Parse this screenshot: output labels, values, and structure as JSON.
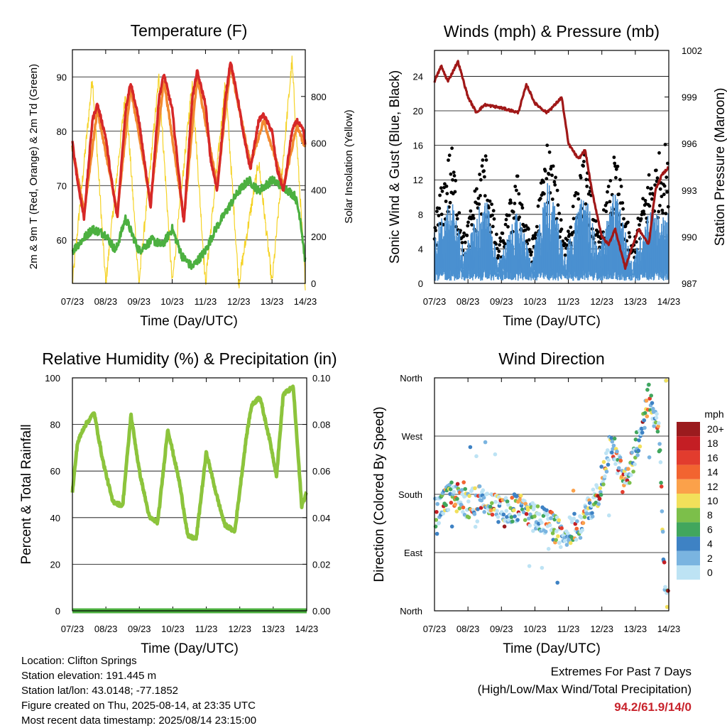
{
  "chart_data": [
    {
      "type": "line",
      "title": "Temperature (F)",
      "xlabel": "Time (Day/UTC)",
      "ylabel": "2m & 9m T (Red, Orange) & 2m Td (Green)",
      "ylabel_right": "Solar Insolation (Yellow)",
      "x_ticks": [
        "07/23",
        "08/23",
        "09/23",
        "10/23",
        "11/23",
        "12/23",
        "13/23",
        "14/23"
      ],
      "ylim": [
        52,
        95
      ],
      "y_ticks": [
        60,
        70,
        80,
        90
      ],
      "y2lim": [
        0,
        1000
      ],
      "y2_ticks": [
        0,
        200,
        400,
        600,
        800
      ],
      "grid": true,
      "series": [
        {
          "color": "#d62828",
          "x": [
            0,
            0.15,
            0.35,
            0.6,
            0.75,
            1.0,
            1.15,
            1.35,
            1.6,
            1.75,
            2.0,
            2.15,
            2.35,
            2.6,
            2.75,
            3.0,
            3.15,
            3.35,
            3.6,
            3.75,
            4.0,
            4.15,
            4.35,
            4.6,
            4.75,
            5.0,
            5.15,
            5.35,
            5.6,
            5.75,
            6.0,
            6.15,
            6.35,
            6.6,
            6.75,
            6.95,
            7.0
          ],
          "values": [
            78,
            71,
            64,
            82,
            85,
            79,
            72,
            64,
            84,
            89,
            82,
            75,
            66,
            86,
            90.5,
            84,
            75,
            63,
            86,
            91,
            85,
            75,
            69,
            86,
            93,
            85,
            79,
            73,
            82,
            83,
            80,
            73,
            69,
            80,
            82,
            80,
            77
          ]
        },
        {
          "color": "#f28a30",
          "x": [
            0,
            0.35,
            0.75,
            1.35,
            1.75,
            2.35,
            2.75,
            3.35,
            3.75,
            4.35,
            4.75,
            5.35,
            5.75,
            6.35,
            6.75,
            7.0
          ],
          "values": [
            77,
            65,
            84,
            65,
            88,
            67,
            89.5,
            64,
            90,
            70,
            92,
            74,
            82,
            70,
            81,
            77
          ]
        },
        {
          "color": "#4cb040",
          "x": [
            0,
            0.3,
            0.6,
            1.0,
            1.3,
            1.6,
            2.0,
            2.4,
            2.7,
            3.0,
            3.3,
            3.6,
            4.0,
            4.3,
            4.6,
            5.0,
            5.3,
            5.6,
            6.0,
            6.3,
            6.7,
            6.85,
            7.0
          ],
          "values": [
            58,
            60,
            62,
            61,
            58,
            64,
            58,
            60,
            59,
            62,
            57,
            55,
            58,
            62,
            65,
            69,
            71,
            69,
            71,
            70,
            68,
            64,
            56
          ]
        },
        {
          "color": "#f5d327",
          "x": [
            0,
            0.6,
            1.0,
            1.6,
            2.0,
            2.6,
            3.0,
            3.6,
            4.0,
            4.6,
            5.0,
            5.6,
            6.0,
            6.6,
            7.0
          ],
          "values_right": [
            0,
            880,
            0,
            820,
            0,
            880,
            0,
            860,
            0,
            860,
            0,
            520,
            0,
            950,
            0
          ]
        }
      ]
    },
    {
      "type": "scatter",
      "title": "Winds (mph) & Pressure (mb)",
      "xlabel": "Time (Day/UTC)",
      "ylabel": "Sonic Wind & Gust (Blue, Black)",
      "ylabel_right": "Station Pressure (Maroon)",
      "x_ticks": [
        "07/23",
        "08/23",
        "09/23",
        "10/23",
        "11/23",
        "12/23",
        "13/23",
        "14/23"
      ],
      "ylim": [
        0,
        27
      ],
      "y_ticks": [
        0,
        4,
        8,
        12,
        16,
        20,
        24
      ],
      "y2lim": [
        987,
        1002
      ],
      "y2_ticks": [
        987,
        990,
        993,
        996,
        999,
        1002
      ],
      "grid": true,
      "series": [
        {
          "color": "#4a90d0",
          "x": [
            0,
            0.5,
            0.9,
            1.5,
            1.9,
            2.5,
            2.9,
            3.4,
            3.9,
            4.5,
            4.9,
            5.4,
            5.9,
            6.4,
            6.9,
            7.0
          ],
          "values": [
            5,
            8,
            3,
            9,
            2,
            7,
            2,
            10,
            3,
            9,
            3,
            9,
            2,
            7,
            6,
            7
          ]
        },
        {
          "color": "#000000",
          "x": [
            0,
            0.5,
            0.9,
            1.5,
            1.9,
            2.5,
            2.9,
            3.4,
            3.9,
            4.5,
            4.9,
            5.4,
            5.9,
            6.4,
            6.9,
            7.0
          ],
          "values": [
            7,
            15,
            5,
            15,
            4,
            12,
            4,
            16,
            5,
            14,
            5,
            14,
            4,
            12,
            15,
            12
          ]
        },
        {
          "color": "#a01818",
          "x": [
            0,
            0.2,
            0.4,
            0.7,
            1.0,
            1.25,
            1.5,
            2.0,
            2.5,
            2.75,
            3.0,
            3.35,
            3.6,
            3.8,
            4.0,
            4.3,
            4.5,
            4.7,
            5.0,
            5.2,
            5.4,
            5.7,
            5.85,
            6.1,
            6.4,
            6.6,
            6.8,
            7.0
          ],
          "values_right": [
            1000,
            1001,
            1000,
            1001.3,
            999,
            998,
            998.5,
            998.3,
            998,
            999.8,
            998.6,
            998,
            998.5,
            999,
            996,
            995,
            995.6,
            993,
            990,
            989.5,
            990.5,
            988,
            989,
            990.5,
            989.5,
            993,
            994,
            994.5
          ]
        }
      ]
    },
    {
      "type": "line",
      "title": "Relative Humidity (%) & Precipitation (in)",
      "xlabel": "Time (Day/UTC)",
      "ylabel": "Percent & Total Rainfall",
      "x_ticks": [
        "07/23",
        "08/23",
        "09/23",
        "10/23",
        "11/23",
        "12/23",
        "13/23",
        "14/23"
      ],
      "ylim": [
        0,
        100
      ],
      "y_ticks": [
        0,
        20,
        40,
        60,
        80,
        100
      ],
      "y2lim": [
        0,
        0.1
      ],
      "y2_ticks": [
        "0.00",
        "0.02",
        "0.04",
        "0.06",
        "0.08",
        "0.10"
      ],
      "grid": true,
      "series": [
        {
          "color": "#8cc43c",
          "x": [
            0,
            0.15,
            0.35,
            0.65,
            0.9,
            1.2,
            1.5,
            1.75,
            2.0,
            2.3,
            2.55,
            2.85,
            3.2,
            3.45,
            3.7,
            4.0,
            4.3,
            4.55,
            4.85,
            5.2,
            5.35,
            5.6,
            5.9,
            6.1,
            6.3,
            6.6,
            6.85,
            7.0
          ],
          "values": [
            51,
            72,
            79,
            85,
            65,
            47,
            45,
            84,
            60,
            40,
            38,
            78,
            55,
            32,
            31,
            68,
            50,
            37,
            34,
            75,
            88,
            92,
            73,
            58,
            93,
            96,
            45,
            51
          ]
        },
        {
          "color": "#4cb040",
          "x": [
            0,
            7.0
          ],
          "values": [
            0,
            0
          ]
        }
      ]
    },
    {
      "type": "scatter",
      "title": "Wind Direction",
      "xlabel": "Time (Day/UTC)",
      "ylabel": "Direction (Colored By Speed)",
      "x_ticks": [
        "07/23",
        "08/23",
        "09/23",
        "10/23",
        "11/23",
        "12/23",
        "13/23",
        "14/23"
      ],
      "y_ticks": [
        "North",
        "East",
        "South",
        "West",
        "North"
      ],
      "ylim": [
        0,
        360
      ],
      "legend": {
        "title": "mph",
        "labels": [
          "20+",
          "18",
          "16",
          "14",
          "12",
          "10",
          "8",
          "6",
          "4",
          "2",
          "0"
        ],
        "colors": [
          "#9b1b1e",
          "#c41e24",
          "#e23c2e",
          "#f26430",
          "#fba14a",
          "#f2e05a",
          "#7cbf4a",
          "#41a65d",
          "#3e82c4",
          "#7ab4e0",
          "#bde3f4"
        ]
      },
      "series": [
        {
          "x": [
            0,
            0.5,
            1.0,
            1.5,
            2.0,
            2.5,
            2.9,
            3.4,
            3.8,
            4.4,
            4.9,
            5.3,
            5.7,
            6.2,
            6.4,
            6.7,
            6.9
          ],
          "values": [
            150,
            180,
            165,
            175,
            150,
            160,
            145,
            140,
            115,
            135,
            185,
            260,
            200,
            275,
            330,
            280,
            15
          ]
        }
      ]
    }
  ],
  "info": {
    "location": "Location: Clifton Springs",
    "elevation": "Station elevation: 191.445 m",
    "latlon": "Station lat/lon: 43.0148; -77.1852",
    "created": "Figure created on Thu, 2025-08-14, at 23:35 UTC",
    "recent": "Most recent data timestamp: 2025/08/14 23:15:00"
  },
  "extremes": {
    "line1": "Extremes For Past 7 Days",
    "line2": "(High/Low/Max Wind/Total Precipitation)",
    "values": "94.2/61.9/14/0",
    "color": "#c8232c"
  }
}
